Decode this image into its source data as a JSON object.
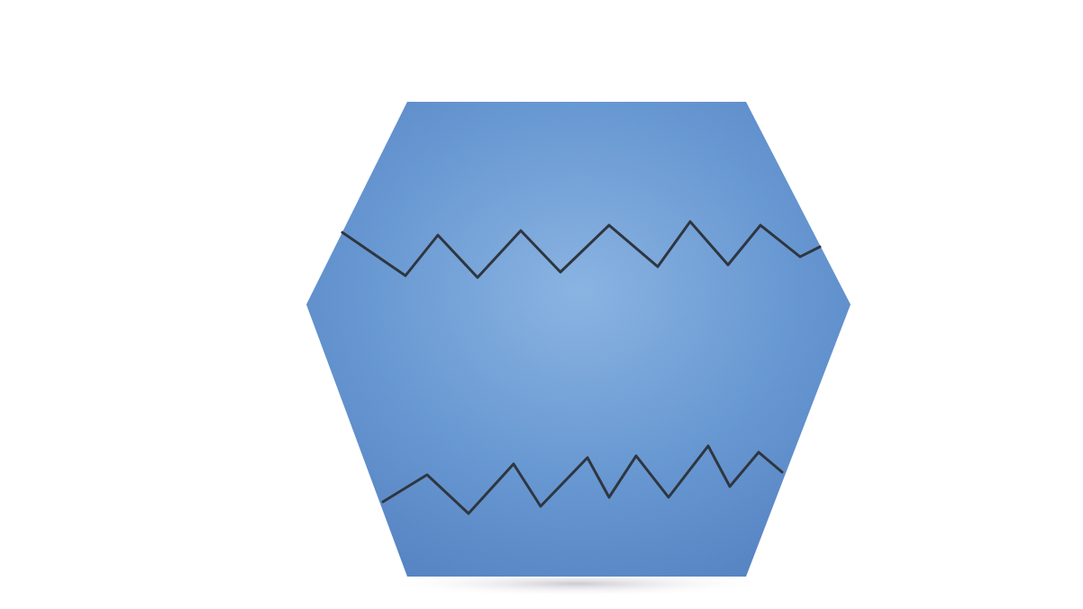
{
  "illustration": {
    "subject": "hexagon-vase-icon",
    "colors": {
      "background": "#ffffff",
      "body_fill": "#6a9bd6",
      "body_light": "#8db7e6",
      "body_dark": "#5a88c8",
      "stroke": "#2f3640",
      "shadow": "#c7c3cc"
    }
  }
}
